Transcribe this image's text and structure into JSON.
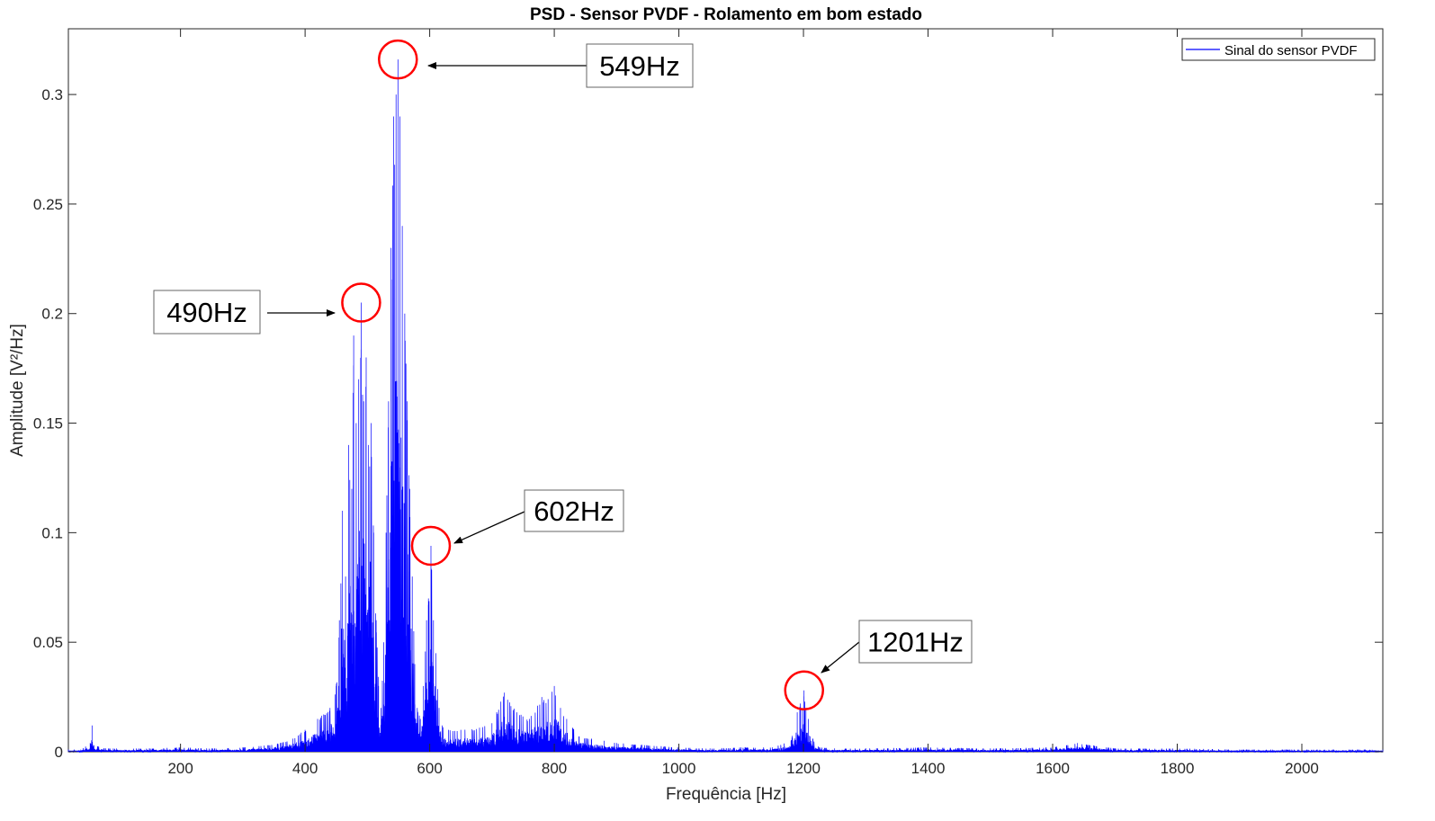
{
  "chart_data": {
    "type": "line",
    "title": "PSD - Sensor PVDF - Rolamento em bom estado",
    "xlabel": "Frequência [Hz]",
    "ylabel": "Amplitude [V²/Hz]",
    "xlim": [
      20,
      2130
    ],
    "ylim": [
      0,
      0.33
    ],
    "xticks": [
      200,
      400,
      600,
      800,
      1000,
      1200,
      1400,
      1600,
      1800,
      2000
    ],
    "yticks": [
      0,
      0.05,
      0.1,
      0.15,
      0.2,
      0.25,
      0.3
    ],
    "ytick_labels": [
      "0",
      "0.05",
      "0.1",
      "0.15",
      "0.2",
      "0.25",
      "0.3"
    ],
    "grid": false,
    "legend_position": "top-right",
    "series": [
      {
        "name": "Sinal do sensor PVDF",
        "color": "#0000ff",
        "x": [
          20,
          40,
          55,
          58,
          61,
          80,
          150,
          200,
          250,
          300,
          340,
          360,
          380,
          400,
          420,
          440,
          450,
          455,
          460,
          465,
          470,
          475,
          478,
          482,
          486,
          490,
          494,
          498,
          502,
          506,
          510,
          514,
          518,
          522,
          526,
          530,
          534,
          538,
          542,
          546,
          549,
          552,
          556,
          560,
          564,
          568,
          572,
          576,
          580,
          585,
          590,
          595,
          598,
          602,
          606,
          610,
          615,
          620,
          630,
          650,
          680,
          700,
          720,
          740,
          760,
          780,
          790,
          800,
          810,
          820,
          840,
          860,
          880,
          900,
          950,
          1000,
          1050,
          1100,
          1150,
          1180,
          1190,
          1195,
          1198,
          1201,
          1204,
          1208,
          1215,
          1225,
          1250,
          1300,
          1400,
          1500,
          1600,
          1640,
          1700,
          1800,
          1900,
          2000,
          2100,
          2130
        ],
        "y": [
          0.001,
          0.001,
          0.004,
          0.012,
          0.003,
          0.0015,
          0.0015,
          0.002,
          0.0015,
          0.002,
          0.003,
          0.004,
          0.006,
          0.01,
          0.015,
          0.02,
          0.03,
          0.06,
          0.11,
          0.08,
          0.14,
          0.12,
          0.19,
          0.15,
          0.17,
          0.205,
          0.16,
          0.18,
          0.14,
          0.15,
          0.1,
          0.06,
          0.03,
          0.02,
          0.05,
          0.1,
          0.16,
          0.23,
          0.29,
          0.3,
          0.316,
          0.29,
          0.24,
          0.2,
          0.16,
          0.12,
          0.08,
          0.04,
          0.02,
          0.015,
          0.03,
          0.06,
          0.07,
          0.094,
          0.06,
          0.045,
          0.02,
          0.012,
          0.01,
          0.01,
          0.011,
          0.013,
          0.027,
          0.018,
          0.015,
          0.025,
          0.024,
          0.03,
          0.02,
          0.015,
          0.007,
          0.006,
          0.005,
          0.004,
          0.003,
          0.002,
          0.0015,
          0.002,
          0.002,
          0.005,
          0.018,
          0.022,
          0.02,
          0.028,
          0.02,
          0.015,
          0.006,
          0.002,
          0.0015,
          0.0015,
          0.002,
          0.0015,
          0.002,
          0.004,
          0.0015,
          0.0015,
          0.001,
          0.001,
          0.001,
          0.001
        ]
      }
    ],
    "annotations": [
      {
        "text": "549Hz",
        "x": 549,
        "y": 0.316
      },
      {
        "text": "490Hz",
        "x": 490,
        "y": 0.205
      },
      {
        "text": "602Hz",
        "x": 602,
        "y": 0.094
      },
      {
        "text": "1201Hz",
        "x": 1201,
        "y": 0.028
      }
    ],
    "annotation_circle_color": "#ff0000"
  }
}
